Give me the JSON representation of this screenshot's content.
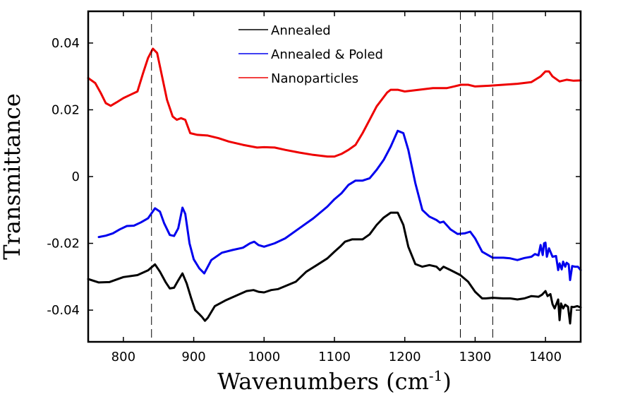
{
  "chart_data": {
    "type": "line",
    "xlabel": "Wavenumbers (cm",
    "xlabel_sup": "-1",
    "xlabel_close": ")",
    "ylabel": "Transmittance",
    "xlim": [
      750,
      1450
    ],
    "ylim": [
      -0.0495,
      0.0495
    ],
    "xticks": [
      800,
      900,
      1000,
      1100,
      1200,
      1300,
      1400
    ],
    "xtick_labels": [
      "800",
      "900",
      "1000",
      "1100",
      "1200",
      "1300",
      "1400"
    ],
    "yticks": [
      0.04,
      0.02,
      0,
      -0.02,
      -0.04
    ],
    "ytick_labels": [
      "0.04",
      "0.02",
      "0",
      "-0.02",
      "-0.04"
    ],
    "grid": false,
    "legend_position": "top-center",
    "reference_lines_x": [
      840,
      1279,
      1325
    ],
    "series": [
      {
        "name": "Annealed",
        "color": "#000000",
        "x": [
          750,
          765,
          780,
          800,
          820,
          835,
          845,
          852,
          860,
          866,
          872,
          878,
          884,
          890,
          896,
          902,
          908,
          912,
          916,
          920,
          930,
          945,
          960,
          975,
          985,
          992,
          1000,
          1010,
          1020,
          1030,
          1045,
          1060,
          1075,
          1090,
          1100,
          1108,
          1115,
          1125,
          1140,
          1150,
          1160,
          1170,
          1180,
          1190,
          1198,
          1205,
          1215,
          1225,
          1235,
          1245,
          1250,
          1255,
          1265,
          1279,
          1290,
          1300,
          1310,
          1315,
          1325,
          1340,
          1350,
          1360,
          1370,
          1380,
          1390,
          1395,
          1400,
          1403,
          1407,
          1410,
          1413,
          1418,
          1420,
          1422,
          1425,
          1428,
          1432,
          1435,
          1437,
          1440,
          1445,
          1450
        ],
        "y": [
          -0.0307,
          -0.0317,
          -0.0316,
          -0.0301,
          -0.0295,
          -0.0281,
          -0.0263,
          -0.0285,
          -0.0316,
          -0.0335,
          -0.0333,
          -0.0311,
          -0.029,
          -0.032,
          -0.0362,
          -0.04,
          -0.0412,
          -0.0421,
          -0.0432,
          -0.0423,
          -0.0388,
          -0.0371,
          -0.0357,
          -0.0343,
          -0.034,
          -0.0345,
          -0.0347,
          -0.034,
          -0.0337,
          -0.0328,
          -0.0315,
          -0.0285,
          -0.0265,
          -0.0245,
          -0.0225,
          -0.021,
          -0.0195,
          -0.0188,
          -0.0188,
          -0.0173,
          -0.0145,
          -0.0123,
          -0.0108,
          -0.0108,
          -0.0145,
          -0.021,
          -0.0262,
          -0.027,
          -0.0265,
          -0.027,
          -0.028,
          -0.027,
          -0.028,
          -0.0295,
          -0.0315,
          -0.0345,
          -0.0365,
          -0.0365,
          -0.0363,
          -0.0365,
          -0.0365,
          -0.0368,
          -0.0365,
          -0.0358,
          -0.036,
          -0.0354,
          -0.0343,
          -0.0358,
          -0.0352,
          -0.0382,
          -0.0395,
          -0.0368,
          -0.043,
          -0.038,
          -0.0395,
          -0.0384,
          -0.039,
          -0.044,
          -0.039,
          -0.0391,
          -0.0388,
          -0.0392
        ]
      },
      {
        "name": "Annealed & Poled",
        "color": "#0000ee",
        "x": [
          765,
          775,
          785,
          795,
          805,
          815,
          825,
          835,
          845,
          852,
          858,
          866,
          872,
          878,
          884,
          888,
          894,
          900,
          908,
          915,
          925,
          940,
          955,
          970,
          980,
          986,
          992,
          1000,
          1015,
          1030,
          1050,
          1070,
          1090,
          1100,
          1110,
          1120,
          1130,
          1140,
          1150,
          1160,
          1170,
          1180,
          1190,
          1198,
          1205,
          1215,
          1225,
          1235,
          1245,
          1250,
          1255,
          1265,
          1275,
          1285,
          1293,
          1300,
          1310,
          1325,
          1340,
          1350,
          1360,
          1370,
          1380,
          1385,
          1390,
          1393,
          1396,
          1398,
          1400,
          1402,
          1405,
          1410,
          1415,
          1418,
          1420,
          1423,
          1425,
          1428,
          1430,
          1433,
          1435,
          1438,
          1442,
          1446,
          1450
        ],
        "y": [
          -0.0181,
          -0.0177,
          -0.017,
          -0.0158,
          -0.0148,
          -0.0147,
          -0.0137,
          -0.0125,
          -0.0095,
          -0.0105,
          -0.014,
          -0.0175,
          -0.0178,
          -0.0155,
          -0.0093,
          -0.0112,
          -0.02,
          -0.0248,
          -0.0275,
          -0.029,
          -0.025,
          -0.0228,
          -0.022,
          -0.0213,
          -0.02,
          -0.0195,
          -0.0205,
          -0.021,
          -0.02,
          -0.0185,
          -0.0155,
          -0.0125,
          -0.009,
          -0.0068,
          -0.005,
          -0.0025,
          -0.0012,
          -0.0012,
          -0.0005,
          0.002,
          0.005,
          0.009,
          0.0137,
          0.013,
          0.008,
          -0.002,
          -0.01,
          -0.012,
          -0.013,
          -0.0138,
          -0.0135,
          -0.0158,
          -0.0172,
          -0.017,
          -0.0165,
          -0.0185,
          -0.0225,
          -0.0243,
          -0.0243,
          -0.0245,
          -0.025,
          -0.0244,
          -0.024,
          -0.0232,
          -0.0236,
          -0.0205,
          -0.0235,
          -0.02,
          -0.0198,
          -0.024,
          -0.0215,
          -0.024,
          -0.0238,
          -0.028,
          -0.026,
          -0.0278,
          -0.0255,
          -0.027,
          -0.0258,
          -0.0263,
          -0.031,
          -0.0268,
          -0.027,
          -0.027,
          -0.028
        ]
      },
      {
        "name": "Nanoparticles",
        "color": "#ee0000",
        "x": [
          750,
          760,
          768,
          775,
          782,
          790,
          800,
          810,
          820,
          828,
          835,
          842,
          848,
          855,
          862,
          870,
          876,
          882,
          888,
          895,
          905,
          920,
          935,
          950,
          970,
          990,
          1000,
          1015,
          1030,
          1050,
          1070,
          1090,
          1100,
          1110,
          1120,
          1130,
          1140,
          1150,
          1160,
          1170,
          1175,
          1180,
          1190,
          1200,
          1220,
          1240,
          1260,
          1270,
          1280,
          1290,
          1300,
          1320,
          1340,
          1360,
          1380,
          1393,
          1400,
          1405,
          1410,
          1420,
          1430,
          1440,
          1450
        ],
        "y": [
          0.0295,
          0.028,
          0.025,
          0.022,
          0.0212,
          0.0222,
          0.0235,
          0.0245,
          0.0255,
          0.031,
          0.0355,
          0.0383,
          0.037,
          0.03,
          0.023,
          0.018,
          0.017,
          0.0175,
          0.017,
          0.013,
          0.0125,
          0.0123,
          0.0115,
          0.0105,
          0.0095,
          0.0087,
          0.0088,
          0.0087,
          0.008,
          0.0072,
          0.0065,
          0.006,
          0.006,
          0.0068,
          0.008,
          0.0095,
          0.013,
          0.017,
          0.021,
          0.0238,
          0.0252,
          0.026,
          0.026,
          0.0255,
          0.026,
          0.0265,
          0.0265,
          0.027,
          0.0275,
          0.0275,
          0.027,
          0.0272,
          0.0275,
          0.0278,
          0.0283,
          0.03,
          0.0315,
          0.0315,
          0.03,
          0.0285,
          0.029,
          0.0287,
          0.0288
        ]
      }
    ]
  }
}
